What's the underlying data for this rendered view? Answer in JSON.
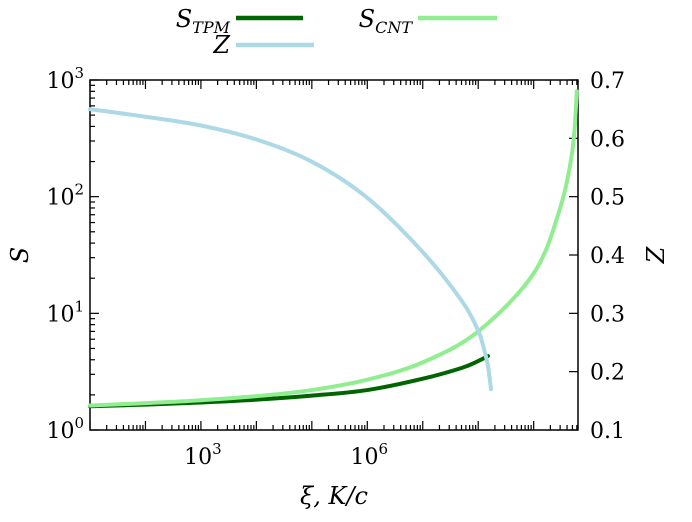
{
  "chart_data": {
    "type": "line",
    "title": "",
    "xlabel": "ξ, K/c",
    "ylabel_left": "S",
    "ylabel_right": "Z",
    "x_scale": "log",
    "y_left_scale": "log",
    "xlim": [
      10,
      6300000000
    ],
    "ylim_left": [
      1,
      1000
    ],
    "ylim_right": [
      0.1,
      0.7
    ],
    "grid": false,
    "legend_position": "top",
    "x_ticks": [
      {
        "value": 1000,
        "base": "10",
        "exp": "3"
      },
      {
        "value": 1000000,
        "base": "10",
        "exp": "6"
      }
    ],
    "y_left_ticks": [
      {
        "value": 1,
        "base": "10",
        "exp": "0"
      },
      {
        "value": 10,
        "base": "10",
        "exp": "1"
      },
      {
        "value": 100,
        "base": "10",
        "exp": "2"
      },
      {
        "value": 1000,
        "base": "10",
        "exp": "3"
      }
    ],
    "y_right_ticks": [
      "0.1",
      "0.2",
      "0.3",
      "0.4",
      "0.5",
      "0.6",
      "0.7"
    ],
    "series": [
      {
        "name": "S_TPM",
        "name_base": "S",
        "name_sub": "TPM",
        "axis": "left",
        "color": "#006400",
        "x": [
          10,
          100,
          1000,
          10000,
          100000,
          1000000,
          10000000,
          50000000,
          100000000,
          150000000
        ],
        "y": [
          1.6,
          1.65,
          1.72,
          1.82,
          1.97,
          2.2,
          2.75,
          3.4,
          3.9,
          4.3
        ]
      },
      {
        "name": "S_CNT",
        "name_base": "S",
        "name_sub": "CNT",
        "axis": "left",
        "color": "#90ee90",
        "x": [
          10,
          100,
          1000,
          10000,
          100000,
          1000000,
          10000000,
          100000000,
          1000000000,
          3000000000,
          5000000000,
          6000000000
        ],
        "y": [
          1.62,
          1.7,
          1.8,
          1.95,
          2.2,
          2.7,
          3.8,
          7.0,
          22,
          80,
          250,
          800
        ]
      },
      {
        "name": "Z",
        "name_base": "Z",
        "name_sub": "",
        "axis": "right",
        "color": "#add8e6",
        "x": [
          10,
          100,
          1000,
          10000,
          100000,
          1000000,
          10000000,
          50000000,
          100000000,
          130000000,
          150000000,
          170000000
        ],
        "y": [
          0.65,
          0.637,
          0.622,
          0.598,
          0.56,
          0.498,
          0.405,
          0.322,
          0.27,
          0.235,
          0.21,
          0.17
        ]
      }
    ]
  }
}
